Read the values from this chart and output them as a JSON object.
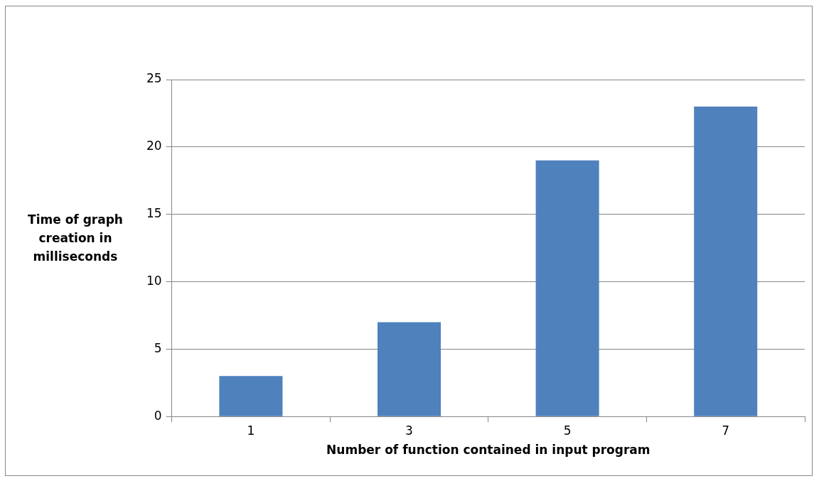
{
  "chart_data": {
    "type": "bar",
    "xlabel": "Number of function contained in input program",
    "ylabel": "Time of graph creation in milliseconds",
    "categories": [
      "1",
      "3",
      "5",
      "7"
    ],
    "values": [
      3,
      7,
      19,
      23
    ],
    "color": "#4f81bd",
    "ylim": [
      0,
      25
    ],
    "yticks": [
      0,
      5,
      10,
      15,
      20,
      25
    ],
    "grid": "y",
    "legend": false
  }
}
